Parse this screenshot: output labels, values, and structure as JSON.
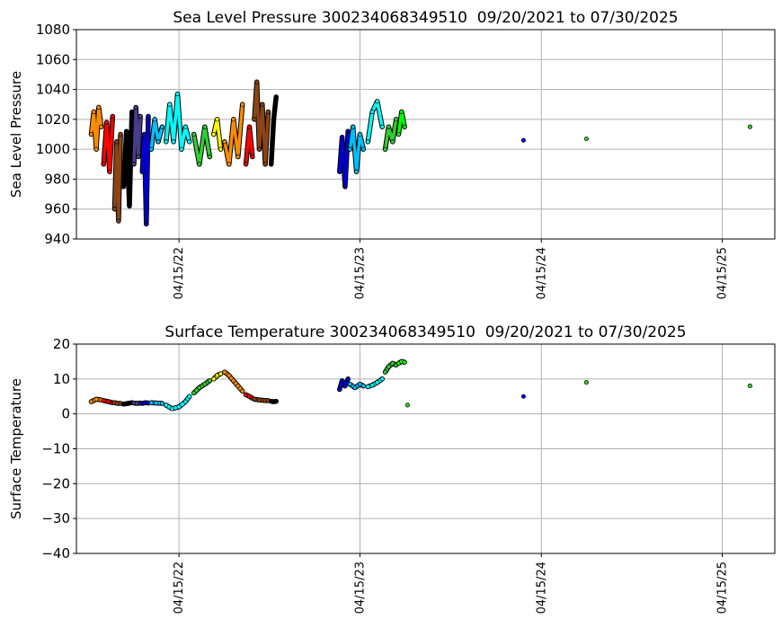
{
  "chart_data": [
    {
      "type": "scatter",
      "title": "Sea Level Pressure 300234068349510  09/20/2021 to 07/30/2025",
      "ylabel": "Sea Level Pressure",
      "xlabel": "",
      "ylim": [
        940,
        1080
      ],
      "yticks": [
        940,
        960,
        980,
        1000,
        1020,
        1040,
        1060,
        1080
      ],
      "xlim": [
        "2021-09-20",
        "2025-07-30"
      ],
      "xticks": [
        "2022-04-15",
        "2023-04-15",
        "2024-04-15",
        "2025-04-15"
      ],
      "xtick_labels": [
        "04/15/22",
        "04/15/23",
        "04/15/24",
        "04/15/25"
      ],
      "grid": true,
      "series": [
        {
          "color": "#ff8c00",
          "x": [
            "2021-10-20",
            "2021-10-25",
            "2021-10-30",
            "2021-11-04",
            "2021-11-09"
          ],
          "y": [
            1010,
            1025,
            1000,
            1028,
            1015
          ]
        },
        {
          "color": "#ff0000",
          "x": [
            "2021-11-14",
            "2021-11-20",
            "2021-11-26",
            "2021-12-02"
          ],
          "y": [
            990,
            1018,
            985,
            1022
          ]
        },
        {
          "color": "#8b4513",
          "x": [
            "2021-12-06",
            "2021-12-10",
            "2021-12-14",
            "2021-12-18"
          ],
          "y": [
            960,
            1005,
            952,
            1010
          ]
        },
        {
          "color": "#000000",
          "x": [
            "2021-12-24",
            "2021-12-30",
            "2022-01-05",
            "2022-01-10"
          ],
          "y": [
            975,
            1012,
            962,
            1025
          ]
        },
        {
          "color": "#483d8b",
          "x": [
            "2022-01-14",
            "2022-01-18",
            "2022-01-23",
            "2022-01-27"
          ],
          "y": [
            990,
            1028,
            995,
            1022
          ]
        },
        {
          "color": "#0000cd",
          "x": [
            "2022-01-31",
            "2022-02-04",
            "2022-02-08",
            "2022-02-12"
          ],
          "y": [
            985,
            1010,
            950,
            1022
          ]
        },
        {
          "color": "#00bfff",
          "x": [
            "2022-02-18",
            "2022-02-25",
            "2022-03-04",
            "2022-03-12"
          ],
          "y": [
            1000,
            1020,
            1005,
            1015
          ]
        },
        {
          "color": "#00ffff",
          "x": [
            "2022-03-20",
            "2022-03-27",
            "2022-04-04",
            "2022-04-12",
            "2022-04-20",
            "2022-04-28",
            "2022-05-06"
          ],
          "y": [
            1005,
            1030,
            1005,
            1037,
            1000,
            1015,
            1005
          ]
        },
        {
          "color": "#32cd32",
          "x": [
            "2022-05-15",
            "2022-05-26",
            "2022-06-06",
            "2022-06-16"
          ],
          "y": [
            1010,
            990,
            1015,
            995
          ]
        },
        {
          "color": "#ffff00",
          "x": [
            "2022-06-24",
            "2022-07-01",
            "2022-07-08"
          ],
          "y": [
            1010,
            1020,
            1000
          ]
        },
        {
          "color": "#ff8c00",
          "x": [
            "2022-07-16",
            "2022-07-25",
            "2022-08-03",
            "2022-08-12",
            "2022-08-21"
          ],
          "y": [
            1005,
            990,
            1020,
            995,
            1030
          ]
        },
        {
          "color": "#ff0000",
          "x": [
            "2022-08-28",
            "2022-09-04",
            "2022-09-10"
          ],
          "y": [
            990,
            1015,
            995
          ]
        },
        {
          "color": "#8b4513",
          "x": [
            "2022-09-14",
            "2022-09-19",
            "2022-09-24",
            "2022-09-30",
            "2022-10-06",
            "2022-10-12"
          ],
          "y": [
            1020,
            1045,
            1000,
            1030,
            990,
            1025
          ]
        },
        {
          "color": "#000000",
          "x": [
            "2022-10-18",
            "2022-10-23",
            "2022-10-28"
          ],
          "y": [
            990,
            1020,
            1035
          ]
        },
        {
          "color": "#0000cd",
          "x": [
            "2023-03-05",
            "2023-03-10",
            "2023-03-16",
            "2023-03-22"
          ],
          "y": [
            985,
            1008,
            975,
            1012
          ]
        },
        {
          "color": "#00bfff",
          "x": [
            "2023-03-26",
            "2023-04-01",
            "2023-04-08",
            "2023-04-15",
            "2023-04-22"
          ],
          "y": [
            1000,
            1015,
            985,
            1010,
            1000
          ]
        },
        {
          "color": "#00ffff",
          "x": [
            "2023-05-01",
            "2023-05-10",
            "2023-05-20",
            "2023-05-30"
          ],
          "y": [
            1005,
            1025,
            1032,
            1015
          ]
        },
        {
          "color": "#32cd32",
          "x": [
            "2023-06-05",
            "2023-06-12",
            "2023-06-20",
            "2023-06-27"
          ],
          "y": [
            1000,
            1015,
            1005,
            1020
          ]
        },
        {
          "color": "#00ff00",
          "x": [
            "2023-07-02",
            "2023-07-08",
            "2023-07-14"
          ],
          "y": [
            1010,
            1025,
            1015
          ]
        },
        {
          "color": "#0000cd",
          "x": [
            "2024-03-10"
          ],
          "y": [
            1006
          ]
        },
        {
          "color": "#32cd32",
          "x": [
            "2024-07-15"
          ],
          "y": [
            1007
          ]
        },
        {
          "color": "#32cd32",
          "x": [
            "2025-06-10"
          ],
          "y": [
            1015
          ]
        }
      ]
    },
    {
      "type": "scatter",
      "title": "Surface Temperature 300234068349510  09/20/2021 to 07/30/2025",
      "ylabel": "Surface Temperature",
      "xlabel": "",
      "ylim": [
        -40,
        20
      ],
      "yticks": [
        -40,
        -30,
        -20,
        -10,
        0,
        10,
        20
      ],
      "xlim": [
        "2021-09-20",
        "2025-07-30"
      ],
      "xticks": [
        "2022-04-15",
        "2023-04-15",
        "2024-04-15",
        "2025-04-15"
      ],
      "xtick_labels": [
        "04/15/22",
        "04/15/23",
        "04/15/24",
        "04/15/25"
      ],
      "grid": true,
      "series": [
        {
          "color": "#ff8c00",
          "x": [
            "2021-10-20",
            "2021-10-30",
            "2021-11-09"
          ],
          "y": [
            3.5,
            4.2,
            4.0
          ]
        },
        {
          "color": "#ff0000",
          "x": [
            "2021-11-14",
            "2021-11-24",
            "2021-12-02"
          ],
          "y": [
            3.8,
            3.5,
            3.2
          ]
        },
        {
          "color": "#8b4513",
          "x": [
            "2021-12-06",
            "2021-12-12",
            "2021-12-18"
          ],
          "y": [
            3.2,
            3.0,
            3.0
          ]
        },
        {
          "color": "#000000",
          "x": [
            "2021-12-24",
            "2022-01-02",
            "2022-01-10"
          ],
          "y": [
            2.8,
            3.0,
            3.2
          ]
        },
        {
          "color": "#483d8b",
          "x": [
            "2022-01-14",
            "2022-01-20",
            "2022-01-27"
          ],
          "y": [
            3.1,
            3.0,
            3.1
          ]
        },
        {
          "color": "#0000cd",
          "x": [
            "2022-01-31",
            "2022-02-06",
            "2022-02-12"
          ],
          "y": [
            3.0,
            3.2,
            3.1
          ]
        },
        {
          "color": "#00bfff",
          "x": [
            "2022-02-18",
            "2022-02-28",
            "2022-03-12"
          ],
          "y": [
            3.2,
            3.1,
            3.0
          ]
        },
        {
          "color": "#00ffff",
          "x": [
            "2022-03-20",
            "2022-04-01",
            "2022-04-15",
            "2022-04-28",
            "2022-05-06"
          ],
          "y": [
            2.5,
            1.5,
            2.0,
            3.5,
            5.0
          ]
        },
        {
          "color": "#32cd32",
          "x": [
            "2022-05-15",
            "2022-05-26",
            "2022-06-06",
            "2022-06-16"
          ],
          "y": [
            6.0,
            7.5,
            8.5,
            9.5
          ]
        },
        {
          "color": "#ffff00",
          "x": [
            "2022-06-24",
            "2022-07-01",
            "2022-07-08"
          ],
          "y": [
            10.0,
            11.0,
            11.5
          ]
        },
        {
          "color": "#ff8c00",
          "x": [
            "2022-07-16",
            "2022-07-25",
            "2022-08-03",
            "2022-08-12",
            "2022-08-21"
          ],
          "y": [
            12.0,
            11.0,
            9.5,
            8.0,
            6.5
          ]
        },
        {
          "color": "#ff0000",
          "x": [
            "2022-08-28",
            "2022-09-04",
            "2022-09-10"
          ],
          "y": [
            5.5,
            5.0,
            4.5
          ]
        },
        {
          "color": "#8b4513",
          "x": [
            "2022-09-14",
            "2022-09-24",
            "2022-10-06",
            "2022-10-12"
          ],
          "y": [
            4.2,
            4.0,
            3.8,
            3.8
          ]
        },
        {
          "color": "#000000",
          "x": [
            "2022-10-18",
            "2022-10-23",
            "2022-10-28"
          ],
          "y": [
            3.6,
            3.5,
            3.6
          ]
        },
        {
          "color": "#0000cd",
          "x": [
            "2023-03-05",
            "2023-03-10",
            "2023-03-16",
            "2023-03-22"
          ],
          "y": [
            7.0,
            9.5,
            8.0,
            10.0
          ]
        },
        {
          "color": "#00bfff",
          "x": [
            "2023-03-26",
            "2023-04-05",
            "2023-04-15",
            "2023-04-22"
          ],
          "y": [
            8.5,
            7.5,
            8.5,
            8.0
          ]
        },
        {
          "color": "#00ffff",
          "x": [
            "2023-05-01",
            "2023-05-10",
            "2023-05-20",
            "2023-05-30"
          ],
          "y": [
            7.8,
            8.2,
            9.0,
            10.0
          ]
        },
        {
          "color": "#32cd32",
          "x": [
            "2023-06-05",
            "2023-06-12",
            "2023-06-20",
            "2023-06-27"
          ],
          "y": [
            12.0,
            13.5,
            14.5,
            14.0
          ]
        },
        {
          "color": "#00ff00",
          "x": [
            "2023-07-02",
            "2023-07-08",
            "2023-07-14"
          ],
          "y": [
            14.5,
            15.0,
            14.8
          ]
        },
        {
          "color": "#32cd32",
          "x": [
            "2023-07-20"
          ],
          "y": [
            2.5
          ]
        },
        {
          "color": "#0000cd",
          "x": [
            "2024-03-10"
          ],
          "y": [
            5.0
          ]
        },
        {
          "color": "#32cd32",
          "x": [
            "2024-07-15"
          ],
          "y": [
            9.0
          ]
        },
        {
          "color": "#32cd32",
          "x": [
            "2025-06-10"
          ],
          "y": [
            8.0
          ]
        }
      ]
    }
  ]
}
